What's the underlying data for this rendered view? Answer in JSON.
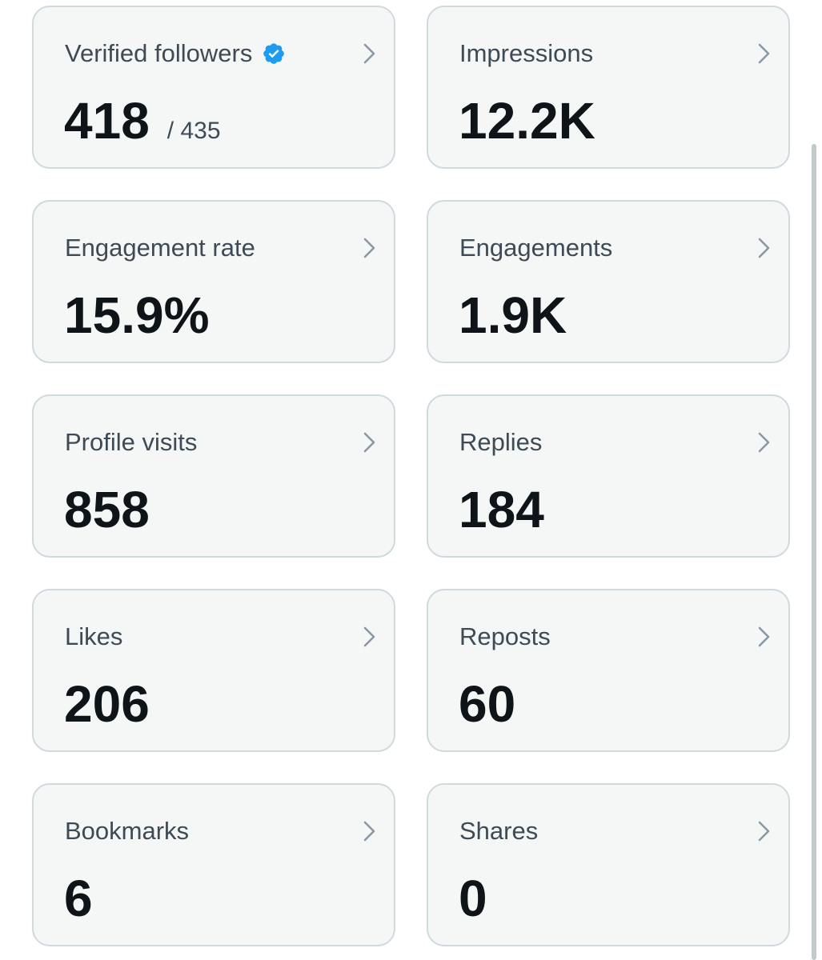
{
  "cards": [
    {
      "title": "Verified followers",
      "value": "418",
      "sub": "/ 435",
      "badge": "verified-badge-icon"
    },
    {
      "title": "Impressions",
      "value": "12.2K"
    },
    {
      "title": "Engagement rate",
      "value": "15.9%"
    },
    {
      "title": "Engagements",
      "value": "1.9K"
    },
    {
      "title": "Profile visits",
      "value": "858"
    },
    {
      "title": "Replies",
      "value": "184"
    },
    {
      "title": "Likes",
      "value": "206"
    },
    {
      "title": "Reposts",
      "value": "60"
    },
    {
      "title": "Bookmarks",
      "value": "6"
    },
    {
      "title": "Shares",
      "value": "0"
    }
  ],
  "icons": {
    "chevron": "chevron-right-icon",
    "verified": "verified-badge-icon"
  },
  "colors": {
    "card_background": "#f5f7f7",
    "card_border": "#cfd9de",
    "title_text": "#3e4a54",
    "value_text": "#0f1419",
    "verified_blue": "#1d9bf0",
    "chevron": "#8b98a5"
  }
}
